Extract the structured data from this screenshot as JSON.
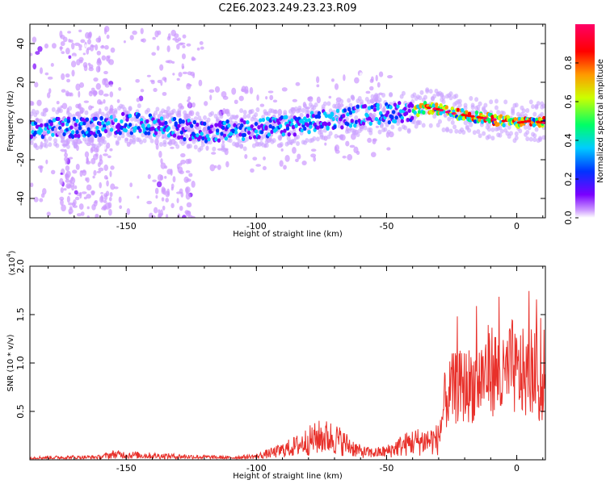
{
  "chart_data": [
    {
      "type": "heatmap",
      "title": "C2E6.2023.249.23.23.R09",
      "xlabel": "Height of straight line (km)",
      "ylabel": "Frequency (Hz)",
      "xlim": [
        -187,
        11
      ],
      "ylim": [
        -50,
        50
      ],
      "x_ticks": [
        -150,
        -100,
        -50,
        0
      ],
      "y_ticks": [
        -40,
        -20,
        0,
        20,
        40
      ],
      "colorbar": {
        "label": "Normalized spectral amplitude",
        "range": [
          0,
          1
        ],
        "ticks": [
          "0.0",
          "0.2",
          "0.4",
          "0.6",
          "0.8"
        ],
        "colormap": [
          "#ffffff",
          "#cc99ff",
          "#7a00ff",
          "#0033ff",
          "#00ccff",
          "#00ff66",
          "#ccff00",
          "#ff9900",
          "#ff0000",
          "#ff0066"
        ]
      },
      "ridge": {
        "x": [
          -187,
          -160,
          -150,
          -140,
          -130,
          -120,
          -110,
          -100,
          -90,
          -80,
          -70,
          -60,
          -50,
          -45,
          -40,
          -35,
          -30,
          -25,
          -20,
          -15,
          -10,
          -5,
          0,
          5,
          11
        ],
        "y": [
          -4,
          -3,
          -1,
          -2,
          -4,
          -6,
          -5,
          -4,
          -3,
          -1,
          1,
          3,
          4,
          5,
          4,
          7,
          6,
          4,
          3,
          2,
          1,
          0,
          -1,
          0,
          -1
        ]
      }
    },
    {
      "type": "line",
      "xlabel": "Height of straight line (km)",
      "ylabel": "SNR (10 * v/v)",
      "y_scale_label": "(x10",
      "y_scale_exp": "4",
      "y_scale_suffix": ")",
      "xlim": [
        -187,
        11
      ],
      "ylim": [
        0,
        2.0
      ],
      "x_ticks": [
        -150,
        -100,
        -50,
        0
      ],
      "y_ticks": [
        0.5,
        1.0,
        1.5,
        2.0
      ],
      "color": "#e8302a",
      "envelope": {
        "x": [
          -187,
          -160,
          -155,
          -140,
          -120,
          -110,
          -100,
          -92,
          -85,
          -80,
          -75,
          -70,
          -65,
          -60,
          -55,
          -50,
          -45,
          -40,
          -35,
          -30,
          -28,
          -25,
          -20,
          -15,
          -12,
          -10,
          -8,
          -6,
          -4,
          -2,
          0,
          2,
          4,
          6,
          8,
          10,
          11
        ],
        "y": [
          0.03,
          0.04,
          0.08,
          0.06,
          0.04,
          0.03,
          0.05,
          0.12,
          0.2,
          0.28,
          0.34,
          0.32,
          0.22,
          0.12,
          0.1,
          0.12,
          0.2,
          0.26,
          0.28,
          0.3,
          0.8,
          1.0,
          1.05,
          1.1,
          1.25,
          1.3,
          1.25,
          1.1,
          1.2,
          1.35,
          1.2,
          1.25,
          1.15,
          1.3,
          1.1,
          0.95,
          0.9
        ]
      }
    }
  ]
}
